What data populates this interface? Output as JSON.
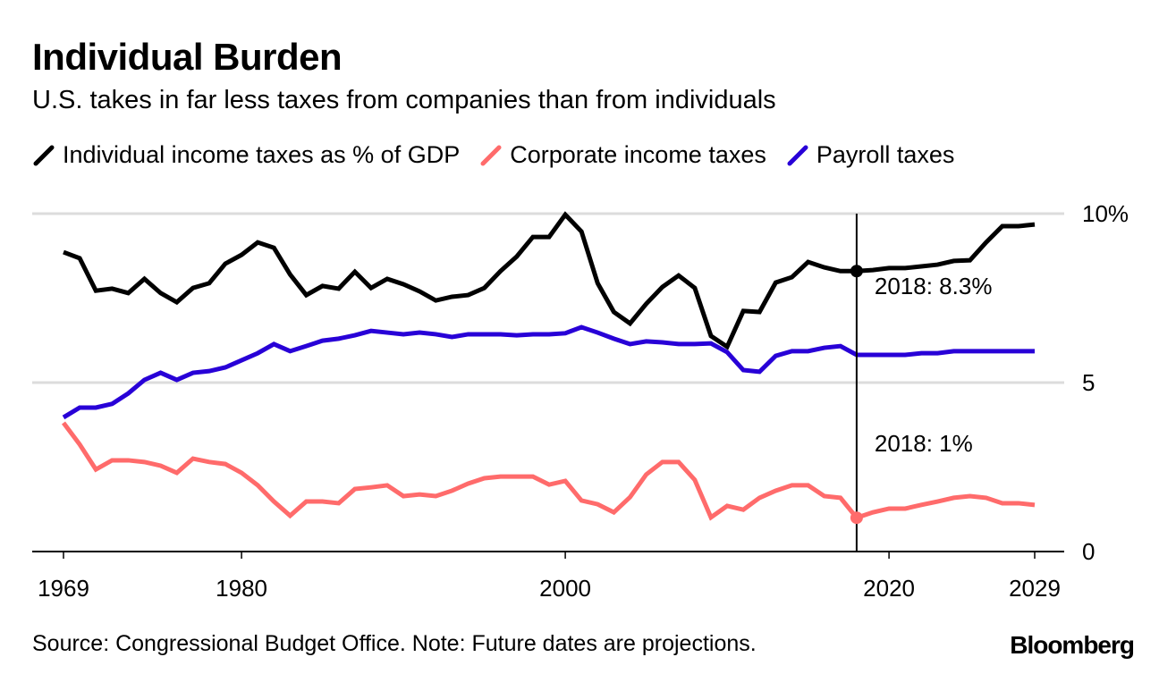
{
  "title": "Individual Burden",
  "subtitle": "U.S. takes in far less taxes from companies than from individuals",
  "source": "Source: Congressional Budget Office. Note: Future dates are projections.",
  "logo": "Bloomberg",
  "chart_data": {
    "type": "line",
    "x": [
      1969,
      1970,
      1971,
      1972,
      1973,
      1974,
      1975,
      1976,
      1977,
      1978,
      1979,
      1980,
      1981,
      1982,
      1983,
      1984,
      1985,
      1986,
      1987,
      1988,
      1989,
      1990,
      1991,
      1992,
      1993,
      1994,
      1995,
      1996,
      1997,
      1998,
      1999,
      2000,
      2001,
      2002,
      2003,
      2004,
      2005,
      2006,
      2007,
      2008,
      2009,
      2010,
      2011,
      2012,
      2013,
      2014,
      2015,
      2016,
      2017,
      2018,
      2019,
      2020,
      2021,
      2022,
      2023,
      2024,
      2025,
      2026,
      2027,
      2028,
      2029
    ],
    "xlim": [
      1969,
      2029
    ],
    "ylim": [
      0,
      10
    ],
    "x_ticks": [
      "1969",
      "1980",
      "2000",
      "2020",
      "2029"
    ],
    "y_ticks": [
      "0",
      "5",
      "10%"
    ],
    "grid": true,
    "legend_placement": "top",
    "series": [
      {
        "name": "Individual income taxes as % of GDP",
        "color": "#000000",
        "values": [
          8.86,
          8.68,
          7.72,
          7.78,
          7.65,
          8.07,
          7.65,
          7.38,
          7.8,
          7.94,
          8.52,
          8.78,
          9.15,
          8.99,
          8.2,
          7.59,
          7.86,
          7.78,
          8.28,
          7.8,
          8.07,
          7.91,
          7.7,
          7.43,
          7.54,
          7.59,
          7.8,
          8.3,
          8.73,
          9.31,
          9.31,
          9.97,
          9.47,
          7.94,
          7.09,
          6.75,
          7.33,
          7.83,
          8.17,
          7.8,
          6.38,
          6.06,
          7.12,
          7.09,
          7.96,
          8.12,
          8.57,
          8.41,
          8.3,
          8.3,
          8.33,
          8.39,
          8.39,
          8.44,
          8.49,
          8.6,
          8.62,
          9.15,
          9.63,
          9.63,
          9.68
        ]
      },
      {
        "name": "Corporate income taxes",
        "color": "#ff6b6b",
        "values": [
          3.81,
          3.17,
          2.43,
          2.7,
          2.7,
          2.65,
          2.54,
          2.33,
          2.75,
          2.65,
          2.59,
          2.33,
          1.96,
          1.48,
          1.06,
          1.48,
          1.48,
          1.43,
          1.85,
          1.9,
          1.96,
          1.64,
          1.69,
          1.64,
          1.8,
          2.01,
          2.17,
          2.22,
          2.22,
          2.22,
          1.98,
          2.09,
          1.51,
          1.4,
          1.16,
          1.61,
          2.28,
          2.65,
          2.65,
          2.12,
          1.01,
          1.35,
          1.24,
          1.59,
          1.8,
          1.96,
          1.96,
          1.64,
          1.59,
          1.0,
          1.16,
          1.27,
          1.27,
          1.38,
          1.48,
          1.59,
          1.64,
          1.59,
          1.43,
          1.43,
          1.38
        ]
      },
      {
        "name": "Payroll taxes",
        "color": "#2800d7",
        "values": [
          3.97,
          4.26,
          4.26,
          4.37,
          4.68,
          5.08,
          5.29,
          5.08,
          5.29,
          5.34,
          5.45,
          5.66,
          5.87,
          6.14,
          5.93,
          6.08,
          6.24,
          6.3,
          6.4,
          6.53,
          6.48,
          6.43,
          6.48,
          6.43,
          6.35,
          6.43,
          6.43,
          6.43,
          6.4,
          6.43,
          6.43,
          6.46,
          6.64,
          6.48,
          6.3,
          6.14,
          6.22,
          6.19,
          6.14,
          6.14,
          6.16,
          5.9,
          5.37,
          5.32,
          5.79,
          5.93,
          5.93,
          6.03,
          6.08,
          5.82,
          5.82,
          5.82,
          5.82,
          5.87,
          5.87,
          5.93,
          5.93,
          5.93,
          5.93,
          5.93,
          5.93
        ]
      }
    ],
    "annotations": [
      {
        "x": 2018,
        "series": 0,
        "text": "2018: 8.3%"
      },
      {
        "x": 2018,
        "series": 1,
        "text": "2018: 1%"
      }
    ]
  }
}
